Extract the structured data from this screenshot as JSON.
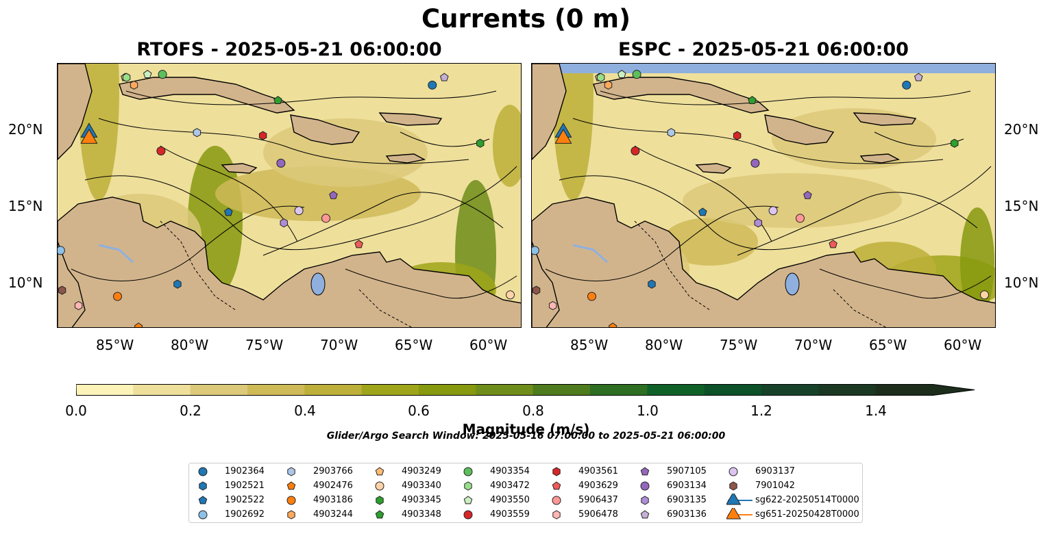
{
  "title": "Currents (0 m)",
  "panels": [
    {
      "title": "RTOFS - 2025-05-21 06:00:00"
    },
    {
      "title": "ESPC - 2025-05-21 06:00:00"
    }
  ],
  "axes": {
    "lon_ticks": [
      "85°W",
      "80°W",
      "75°W",
      "70°W",
      "65°W",
      "60°W"
    ],
    "lat_ticks": [
      "20°N",
      "15°N",
      "10°N"
    ]
  },
  "colorbar": {
    "label": "Magnitude (m/s)",
    "ticks": [
      "0.0",
      "0.2",
      "0.4",
      "0.6",
      "0.8",
      "1.0",
      "1.2",
      "1.4"
    ],
    "range": [
      0,
      1.5
    ],
    "extend": "max",
    "colors": [
      "#fcf3b9",
      "#eedf9b",
      "#dcc97a",
      "#cfba58",
      "#bcb03a",
      "#9fa51a",
      "#86990f",
      "#6f8d1a",
      "#4d7b1d",
      "#2d6e22",
      "#0f6128",
      "#0c5128",
      "#16422a",
      "#1a3822",
      "#1c2d1c"
    ]
  },
  "search_window": "Glider/Argo Search Window: 2025-05-16 07:00:00 to 2025-05-21 06:00:00",
  "colors": {
    "land": "#d2b48c",
    "lake": "#8fb0df",
    "accent_blue": "#1f77b4",
    "accent_orange": "#ff7f0e"
  },
  "legend": [
    {
      "label": "1902364",
      "marker": "circle",
      "color": "#1f77b4"
    },
    {
      "label": "1902521",
      "marker": "hexagon",
      "color": "#1f77b4"
    },
    {
      "label": "1902522",
      "marker": "pentagon",
      "color": "#1f77b4"
    },
    {
      "label": "1902692",
      "marker": "circle",
      "color": "#8ec1e8"
    },
    {
      "label": "2903766",
      "marker": "hexagon",
      "color": "#aec7e8"
    },
    {
      "label": "4902476",
      "marker": "pentagon",
      "color": "#ff7f0e"
    },
    {
      "label": "4903186",
      "marker": "circle",
      "color": "#ff7f0e"
    },
    {
      "label": "4903244",
      "marker": "hexagon",
      "color": "#ffa85c"
    },
    {
      "label": "4903249",
      "marker": "pentagon",
      "color": "#ffbb78"
    },
    {
      "label": "4903340",
      "marker": "circle",
      "color": "#ffd3a8"
    },
    {
      "label": "4903345",
      "marker": "hexagon",
      "color": "#2ca02c"
    },
    {
      "label": "4903348",
      "marker": "pentagon",
      "color": "#2ca02c"
    },
    {
      "label": "4903354",
      "marker": "circle",
      "color": "#5cbf5c"
    },
    {
      "label": "4903472",
      "marker": "hexagon",
      "color": "#98df8a"
    },
    {
      "label": "4903550",
      "marker": "pentagon",
      "color": "#c9f0c0"
    },
    {
      "label": "4903559",
      "marker": "circle",
      "color": "#d62728"
    },
    {
      "label": "4903561",
      "marker": "hexagon",
      "color": "#d62728"
    },
    {
      "label": "4903629",
      "marker": "pentagon",
      "color": "#ef5a5a"
    },
    {
      "label": "5906437",
      "marker": "circle",
      "color": "#ff9896"
    },
    {
      "label": "5906478",
      "marker": "hexagon",
      "color": "#ffb6b4"
    },
    {
      "label": "5907105",
      "marker": "pentagon",
      "color": "#9467bd"
    },
    {
      "label": "6903134",
      "marker": "circle",
      "color": "#9467bd"
    },
    {
      "label": "6903135",
      "marker": "hexagon",
      "color": "#b08cd6"
    },
    {
      "label": "6903136",
      "marker": "pentagon",
      "color": "#c5b0d5"
    },
    {
      "label": "6903137",
      "marker": "circle",
      "color": "#dcc5f0"
    },
    {
      "label": "7901042",
      "marker": "hexagon",
      "color": "#8c564b"
    },
    {
      "label": "sg622-20250514T0000",
      "marker": "triangle",
      "color": "#1f77b4"
    },
    {
      "label": "sg651-20250428T0000",
      "marker": "triangle",
      "color": "#ff7f0e"
    }
  ],
  "chart_data": {
    "type": "scatter",
    "title": "Currents (0 m)",
    "xlabel": "",
    "ylabel": "",
    "xlim": [
      -89.0,
      -58.0
    ],
    "ylim": [
      7.0,
      24.3
    ],
    "x_ticks": [
      -85,
      -80,
      -75,
      -70,
      -65,
      -60
    ],
    "y_ticks": [
      20,
      15,
      10
    ],
    "grid": false,
    "legend_position": "bottom",
    "series": [
      {
        "name": "1902364",
        "x": [
          -64.0
        ],
        "y": [
          22.9
        ]
      },
      {
        "name": "1902521",
        "x": [
          -81.0
        ],
        "y": [
          9.9
        ]
      },
      {
        "name": "1902522",
        "x": [
          -77.6
        ],
        "y": [
          14.6
        ]
      },
      {
        "name": "1902692",
        "x": [
          -88.8
        ],
        "y": [
          12.1
        ]
      },
      {
        "name": "2903766",
        "x": [
          -79.7
        ],
        "y": [
          19.8
        ]
      },
      {
        "name": "4902476",
        "x": [
          -83.6
        ],
        "y": [
          7.1
        ]
      },
      {
        "name": "4903186",
        "x": [
          -85.0
        ],
        "y": [
          9.1
        ]
      },
      {
        "name": "4903244",
        "x": [
          -83.9
        ],
        "y": [
          22.9
        ]
      },
      {
        "name": "4903249",
        "x": [
          -84.5
        ],
        "y": [
          23.4
        ]
      },
      {
        "name": "4903340",
        "x": [
          -58.8
        ],
        "y": [
          9.2
        ]
      },
      {
        "name": "4903345",
        "x": [
          -60.8
        ],
        "y": [
          19.1
        ]
      },
      {
        "name": "4903348",
        "x": [
          -74.3
        ],
        "y": [
          21.9
        ]
      },
      {
        "name": "4903354",
        "x": [
          -82.0
        ],
        "y": [
          23.6
        ]
      },
      {
        "name": "4903472",
        "x": [
          -84.4
        ],
        "y": [
          23.4
        ]
      },
      {
        "name": "4903550",
        "x": [
          -83.0
        ],
        "y": [
          23.6
        ]
      },
      {
        "name": "4903559",
        "x": [
          -82.1
        ],
        "y": [
          18.6
        ]
      },
      {
        "name": "4903561",
        "x": [
          -75.3
        ],
        "y": [
          19.6
        ]
      },
      {
        "name": "4903629",
        "x": [
          -68.9
        ],
        "y": [
          12.5
        ]
      },
      {
        "name": "5906437",
        "x": [
          -71.1
        ],
        "y": [
          14.2
        ]
      },
      {
        "name": "5906478",
        "x": [
          -87.6
        ],
        "y": [
          8.5
        ]
      },
      {
        "name": "5907105",
        "x": [
          -70.6
        ],
        "y": [
          15.7
        ]
      },
      {
        "name": "6903134",
        "x": [
          -74.1
        ],
        "y": [
          17.8
        ]
      },
      {
        "name": "6903135",
        "x": [
          -73.9
        ],
        "y": [
          13.9
        ]
      },
      {
        "name": "6903136",
        "x": [
          -63.2
        ],
        "y": [
          23.4
        ]
      },
      {
        "name": "6903137",
        "x": [
          -72.9
        ],
        "y": [
          14.7
        ]
      },
      {
        "name": "7901042",
        "x": [
          -88.7
        ],
        "y": [
          9.5
        ]
      },
      {
        "name": "sg622-20250514T0000",
        "x": [
          -86.9
        ],
        "y": [
          19.8
        ]
      },
      {
        "name": "sg651-20250428T0000",
        "x": [
          -86.9
        ],
        "y": [
          19.4
        ]
      }
    ]
  }
}
